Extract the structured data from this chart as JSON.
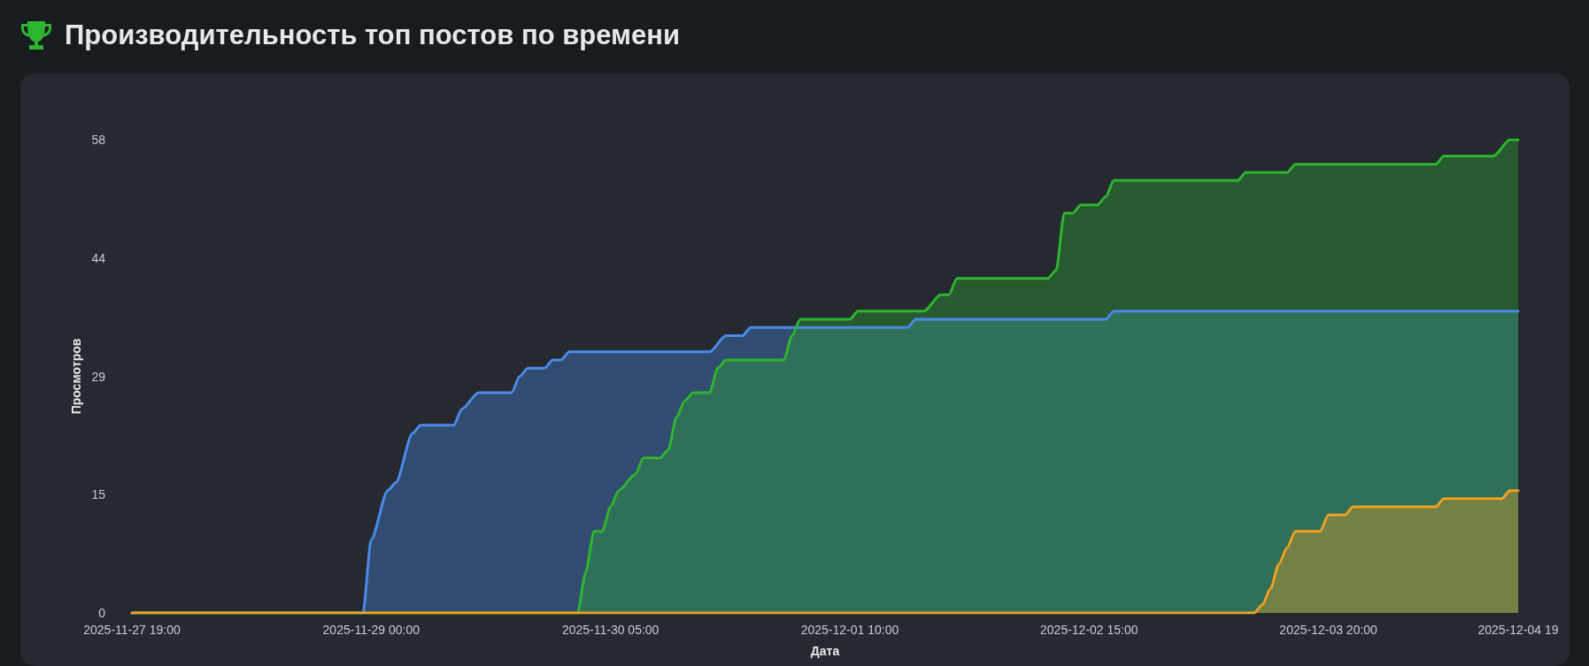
{
  "chart_data": {
    "type": "area",
    "title": "Производительность топ постов по времени",
    "xlabel": "Дата",
    "ylabel": "Просмотров",
    "xlim": [
      "2025-11-27T19:00",
      "2025-12-04T19:00"
    ],
    "xticks": [
      {
        "value": "2025-11-27T19:00",
        "label": "2025-11-27 19:00"
      },
      {
        "value": "2025-11-29T00:00",
        "label": "2025-11-29 00:00"
      },
      {
        "value": "2025-11-30T05:00",
        "label": "2025-11-30 05:00"
      },
      {
        "value": "2025-12-01T10:00",
        "label": "2025-12-01 10:00"
      },
      {
        "value": "2025-12-02T15:00",
        "label": "2025-12-02 15:00"
      },
      {
        "value": "2025-12-03T20:00",
        "label": "2025-12-03 20:00"
      },
      {
        "value": "2025-12-04T19:00",
        "label": "2025-12-04 19"
      }
    ],
    "ylim": [
      0,
      58
    ],
    "yticks": [
      0,
      {
        "value": 14.5,
        "label": "15"
      },
      29,
      {
        "value": 43.5,
        "label": "44"
      },
      58
    ],
    "grid": false,
    "marker": "none",
    "line_style": "solid",
    "series": [
      {
        "color": "#4a8bea",
        "x": [
          "2025-11-27T19:00",
          "2025-11-28T23:00",
          "2025-11-29T00:00",
          "2025-11-29T02:00",
          "2025-11-29T03:00",
          "2025-11-29T05:00",
          "2025-11-29T06:00",
          "2025-11-29T10:00",
          "2025-11-29T11:00",
          "2025-11-29T13:00",
          "2025-11-29T17:00",
          "2025-11-29T18:00",
          "2025-11-29T19:00",
          "2025-11-29T21:00",
          "2025-11-29T22:00",
          "2025-11-29T23:00",
          "2025-11-30T00:00",
          "2025-11-30T17:00",
          "2025-11-30T19:00",
          "2025-11-30T21:00",
          "2025-11-30T22:00",
          "2025-12-01T17:00",
          "2025-12-01T18:00",
          "2025-12-02T17:00",
          "2025-12-02T18:00",
          "2025-12-04T19:00"
        ],
        "values": [
          0,
          0,
          9,
          15,
          16,
          22,
          23,
          23,
          25,
          27,
          27,
          29,
          30,
          30,
          31,
          31,
          32,
          32,
          34,
          34,
          35,
          35,
          36,
          36,
          37,
          37
        ]
      },
      {
        "color": "#2db52f",
        "x": [
          "2025-11-27T19:00",
          "2025-11-30T01:00",
          "2025-11-30T02:00",
          "2025-11-30T03:00",
          "2025-11-30T04:00",
          "2025-11-30T05:00",
          "2025-11-30T06:00",
          "2025-11-30T08:00",
          "2025-11-30T09:00",
          "2025-11-30T11:00",
          "2025-11-30T12:00",
          "2025-11-30T13:00",
          "2025-11-30T14:00",
          "2025-11-30T15:00",
          "2025-11-30T17:00",
          "2025-11-30T18:00",
          "2025-11-30T19:00",
          "2025-12-01T02:00",
          "2025-12-01T03:00",
          "2025-12-01T04:00",
          "2025-12-01T10:00",
          "2025-12-01T11:00",
          "2025-12-01T19:00",
          "2025-12-01T21:00",
          "2025-12-01T22:00",
          "2025-12-01T23:00",
          "2025-12-02T10:00",
          "2025-12-02T11:00",
          "2025-12-02T12:00",
          "2025-12-02T13:00",
          "2025-12-02T14:00",
          "2025-12-02T16:00",
          "2025-12-02T17:00",
          "2025-12-02T18:00",
          "2025-12-03T09:00",
          "2025-12-03T10:00",
          "2025-12-03T15:00",
          "2025-12-03T16:00",
          "2025-12-04T09:00",
          "2025-12-04T10:00",
          "2025-12-04T16:00",
          "2025-12-04T18:00",
          "2025-12-04T19:00"
        ],
        "values": [
          0,
          0,
          5,
          10,
          10,
          13,
          15,
          17,
          19,
          19,
          20,
          24,
          26,
          27,
          27,
          30,
          31,
          31,
          34,
          36,
          36,
          37,
          37,
          39,
          39,
          41,
          41,
          42,
          49,
          49,
          50,
          50,
          51,
          53,
          53,
          54,
          54,
          55,
          55,
          56,
          56,
          58,
          58
        ]
      },
      {
        "color": "#f0a020",
        "x": [
          "2025-11-27T19:00",
          "2025-12-03T11:00",
          "2025-12-03T12:00",
          "2025-12-03T13:00",
          "2025-12-03T14:00",
          "2025-12-03T15:00",
          "2025-12-03T16:00",
          "2025-12-03T19:00",
          "2025-12-03T20:00",
          "2025-12-03T22:00",
          "2025-12-03T23:00",
          "2025-12-04T09:00",
          "2025-12-04T10:00",
          "2025-12-04T17:00",
          "2025-12-04T18:00",
          "2025-12-04T19:00"
        ],
        "values": [
          0,
          0,
          1,
          3,
          6,
          8,
          10,
          10,
          12,
          12,
          13,
          13,
          14,
          14,
          15,
          15
        ]
      }
    ]
  }
}
